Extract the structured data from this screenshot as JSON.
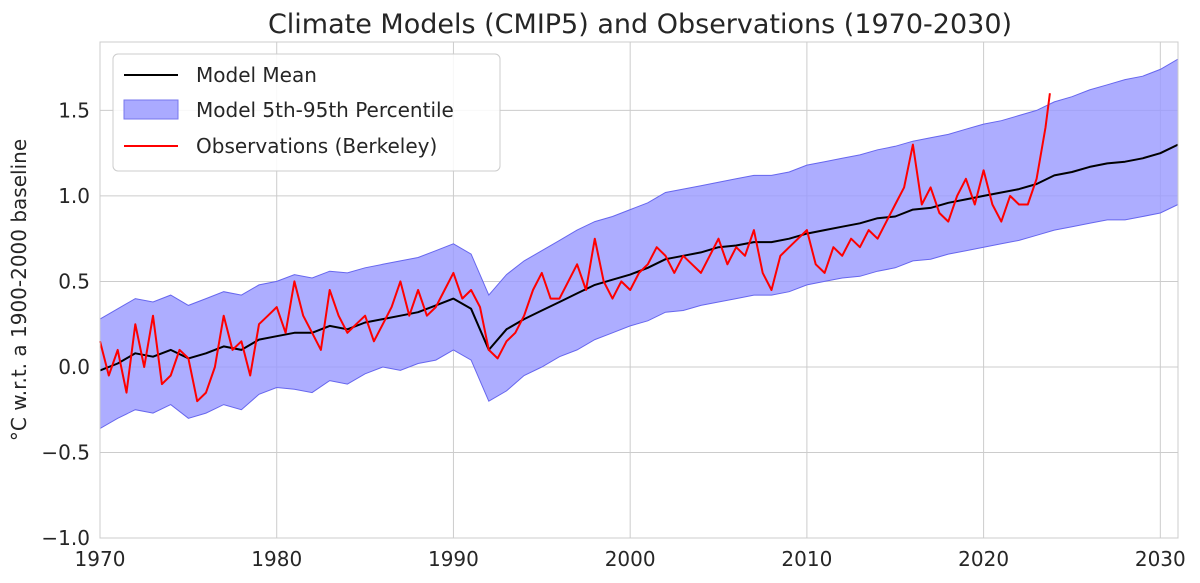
{
  "chart_data": {
    "type": "line",
    "title": "Climate Models (CMIP5) and Observations (1970-2030)",
    "xlabel": "",
    "ylabel": "°C w.r.t. a 1900-2000 baseline",
    "xlim": [
      1970,
      2031
    ],
    "ylim": [
      -1.0,
      1.9
    ],
    "x_ticks": [
      1970,
      1980,
      1990,
      2000,
      2010,
      2020,
      2030
    ],
    "x_tick_labels": [
      "1970",
      "1980",
      "1990",
      "2000",
      "2010",
      "2020",
      "2030"
    ],
    "y_ticks": [
      -1.0,
      -0.5,
      0.0,
      0.5,
      1.0,
      1.5
    ],
    "y_tick_labels": [
      "−1.0",
      "−0.5",
      "0.0",
      "0.5",
      "1.0",
      "1.5"
    ],
    "grid": true,
    "legend_position": "top-left",
    "series": [
      {
        "name": "Model Mean",
        "kind": "line",
        "color": "#000000",
        "x": [
          1970,
          1971,
          1972,
          1973,
          1974,
          1975,
          1976,
          1977,
          1978,
          1979,
          1980,
          1981,
          1982,
          1983,
          1984,
          1985,
          1986,
          1987,
          1988,
          1989,
          1990,
          1991,
          1992,
          1993,
          1994,
          1995,
          1996,
          1997,
          1998,
          1999,
          2000,
          2001,
          2002,
          2003,
          2004,
          2005,
          2006,
          2007,
          2008,
          2009,
          2010,
          2011,
          2012,
          2013,
          2014,
          2015,
          2016,
          2017,
          2018,
          2019,
          2020,
          2021,
          2022,
          2023,
          2024,
          2025,
          2026,
          2027,
          2028,
          2029,
          2030,
          2031
        ],
        "y": [
          -0.02,
          0.02,
          0.08,
          0.06,
          0.1,
          0.05,
          0.08,
          0.12,
          0.1,
          0.16,
          0.18,
          0.2,
          0.2,
          0.24,
          0.22,
          0.26,
          0.28,
          0.3,
          0.32,
          0.36,
          0.4,
          0.34,
          0.1,
          0.22,
          0.28,
          0.33,
          0.38,
          0.43,
          0.48,
          0.51,
          0.54,
          0.58,
          0.63,
          0.65,
          0.67,
          0.7,
          0.71,
          0.73,
          0.73,
          0.75,
          0.78,
          0.8,
          0.82,
          0.84,
          0.87,
          0.88,
          0.92,
          0.93,
          0.96,
          0.98,
          1.0,
          1.02,
          1.04,
          1.07,
          1.12,
          1.14,
          1.17,
          1.19,
          1.2,
          1.22,
          1.25,
          1.3
        ]
      },
      {
        "name": "Model 5th-95th Percentile",
        "kind": "band",
        "color": "#9999ff",
        "edge_color": "#6666ee",
        "x": [
          1970,
          1971,
          1972,
          1973,
          1974,
          1975,
          1976,
          1977,
          1978,
          1979,
          1980,
          1981,
          1982,
          1983,
          1984,
          1985,
          1986,
          1987,
          1988,
          1989,
          1990,
          1991,
          1992,
          1993,
          1994,
          1995,
          1996,
          1997,
          1998,
          1999,
          2000,
          2001,
          2002,
          2003,
          2004,
          2005,
          2006,
          2007,
          2008,
          2009,
          2010,
          2011,
          2012,
          2013,
          2014,
          2015,
          2016,
          2017,
          2018,
          2019,
          2020,
          2021,
          2022,
          2023,
          2024,
          2025,
          2026,
          2027,
          2028,
          2029,
          2030,
          2031
        ],
        "lower": [
          -0.36,
          -0.3,
          -0.25,
          -0.27,
          -0.22,
          -0.3,
          -0.27,
          -0.22,
          -0.25,
          -0.16,
          -0.12,
          -0.13,
          -0.15,
          -0.08,
          -0.1,
          -0.04,
          0.0,
          -0.02,
          0.02,
          0.04,
          0.1,
          0.04,
          -0.2,
          -0.14,
          -0.05,
          0.0,
          0.06,
          0.1,
          0.16,
          0.2,
          0.24,
          0.27,
          0.32,
          0.33,
          0.36,
          0.38,
          0.4,
          0.42,
          0.42,
          0.44,
          0.48,
          0.5,
          0.52,
          0.53,
          0.56,
          0.58,
          0.62,
          0.63,
          0.66,
          0.68,
          0.7,
          0.72,
          0.74,
          0.77,
          0.8,
          0.82,
          0.84,
          0.86,
          0.86,
          0.88,
          0.9,
          0.95
        ],
        "upper": [
          0.28,
          0.34,
          0.4,
          0.38,
          0.42,
          0.36,
          0.4,
          0.44,
          0.42,
          0.48,
          0.5,
          0.54,
          0.52,
          0.56,
          0.55,
          0.58,
          0.6,
          0.62,
          0.64,
          0.68,
          0.72,
          0.66,
          0.42,
          0.54,
          0.62,
          0.68,
          0.74,
          0.8,
          0.85,
          0.88,
          0.92,
          0.96,
          1.02,
          1.04,
          1.06,
          1.08,
          1.1,
          1.12,
          1.12,
          1.14,
          1.18,
          1.2,
          1.22,
          1.24,
          1.27,
          1.29,
          1.32,
          1.34,
          1.36,
          1.39,
          1.42,
          1.44,
          1.47,
          1.5,
          1.55,
          1.58,
          1.62,
          1.65,
          1.68,
          1.7,
          1.74,
          1.8
        ]
      },
      {
        "name": "Observations (Berkeley)",
        "kind": "line",
        "color": "#ff0000",
        "x": [
          1970.0,
          1970.5,
          1971.0,
          1971.5,
          1972.0,
          1972.5,
          1973.0,
          1973.5,
          1974.0,
          1974.5,
          1975.0,
          1975.5,
          1976.0,
          1976.5,
          1977.0,
          1977.5,
          1978.0,
          1978.5,
          1979.0,
          1979.5,
          1980.0,
          1980.5,
          1981.0,
          1981.5,
          1982.0,
          1982.5,
          1983.0,
          1983.5,
          1984.0,
          1984.5,
          1985.0,
          1985.5,
          1986.0,
          1986.5,
          1987.0,
          1987.5,
          1988.0,
          1988.5,
          1989.0,
          1989.5,
          1990.0,
          1990.5,
          1991.0,
          1991.5,
          1992.0,
          1992.5,
          1993.0,
          1993.5,
          1994.0,
          1994.5,
          1995.0,
          1995.5,
          1996.0,
          1996.5,
          1997.0,
          1997.5,
          1998.0,
          1998.5,
          1999.0,
          1999.5,
          2000.0,
          2000.5,
          2001.0,
          2001.5,
          2002.0,
          2002.5,
          2003.0,
          2003.5,
          2004.0,
          2004.5,
          2005.0,
          2005.5,
          2006.0,
          2006.5,
          2007.0,
          2007.5,
          2008.0,
          2008.5,
          2009.0,
          2009.5,
          2010.0,
          2010.5,
          2011.0,
          2011.5,
          2012.0,
          2012.5,
          2013.0,
          2013.5,
          2014.0,
          2014.5,
          2015.0,
          2015.5,
          2016.0,
          2016.5,
          2017.0,
          2017.5,
          2018.0,
          2018.5,
          2019.0,
          2019.5,
          2020.0,
          2020.5,
          2021.0,
          2021.5,
          2022.0,
          2022.5,
          2023.0,
          2023.5,
          2023.75
        ],
        "y": [
          0.15,
          -0.05,
          0.1,
          -0.15,
          0.25,
          0.0,
          0.3,
          -0.1,
          -0.05,
          0.1,
          0.05,
          -0.2,
          -0.15,
          0.0,
          0.3,
          0.1,
          0.15,
          -0.05,
          0.25,
          0.3,
          0.35,
          0.2,
          0.5,
          0.3,
          0.2,
          0.1,
          0.45,
          0.3,
          0.2,
          0.25,
          0.3,
          0.15,
          0.25,
          0.35,
          0.5,
          0.3,
          0.45,
          0.3,
          0.35,
          0.45,
          0.55,
          0.4,
          0.45,
          0.35,
          0.1,
          0.05,
          0.15,
          0.2,
          0.3,
          0.45,
          0.55,
          0.4,
          0.4,
          0.5,
          0.6,
          0.45,
          0.75,
          0.5,
          0.4,
          0.5,
          0.45,
          0.55,
          0.6,
          0.7,
          0.65,
          0.55,
          0.65,
          0.6,
          0.55,
          0.65,
          0.75,
          0.6,
          0.7,
          0.65,
          0.8,
          0.55,
          0.45,
          0.65,
          0.7,
          0.75,
          0.8,
          0.6,
          0.55,
          0.7,
          0.65,
          0.75,
          0.7,
          0.8,
          0.75,
          0.85,
          0.95,
          1.05,
          1.3,
          0.95,
          1.05,
          0.9,
          0.85,
          1.0,
          1.1,
          0.95,
          1.15,
          0.95,
          0.85,
          1.0,
          0.95,
          0.95,
          1.1,
          1.4,
          1.6
        ]
      }
    ]
  },
  "legend": {
    "items": [
      {
        "label": "Model Mean",
        "swatch": "line",
        "color": "#000000"
      },
      {
        "label": "Model 5th-95th Percentile",
        "swatch": "patch",
        "color": "#aaaaff"
      },
      {
        "label": "Observations (Berkeley)",
        "swatch": "line",
        "color": "#ff0000"
      }
    ]
  }
}
